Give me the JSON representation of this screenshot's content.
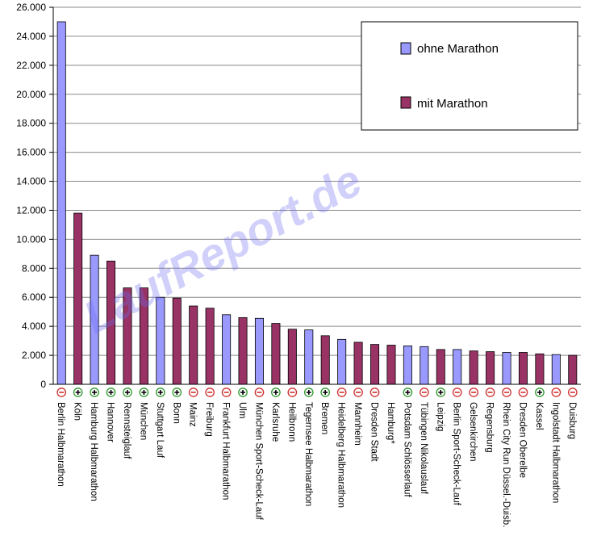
{
  "chart_data": {
    "type": "bar",
    "ylim": [
      0,
      26000
    ],
    "y_ticks": [
      "0",
      "2.000",
      "4.000",
      "6.000",
      "8.000",
      "10.000",
      "12.000",
      "14.000",
      "16.000",
      "18.000",
      "20.000",
      "22.000",
      "24.000",
      "26.000"
    ],
    "grid": true,
    "legend_position": "top-right",
    "series": [
      {
        "name": "ohne Marathon",
        "color": "#9999ff"
      },
      {
        "name": "mit Marathon",
        "color": "#993366"
      }
    ],
    "watermark": "LaufReport.de",
    "categories": [
      {
        "label": "Berlin Halbmarathon",
        "value": 25000,
        "series": 0,
        "marker": "minus"
      },
      {
        "label": "Köln",
        "value": 11800,
        "series": 1,
        "marker": "plus"
      },
      {
        "label": "Hamburg Halbmarathon",
        "value": 8900,
        "series": 0,
        "marker": "plus"
      },
      {
        "label": "Hannover",
        "value": 8500,
        "series": 1,
        "marker": "plus"
      },
      {
        "label": "Rennsteiglauf",
        "value": 6650,
        "series": 1,
        "marker": "plus"
      },
      {
        "label": "München",
        "value": 6650,
        "series": 1,
        "marker": "plus"
      },
      {
        "label": "Stuttgart Lauf",
        "value": 6000,
        "series": 0,
        "marker": "plus"
      },
      {
        "label": "Bonn",
        "value": 5950,
        "series": 1,
        "marker": "plus"
      },
      {
        "label": "Mainz",
        "value": 5400,
        "series": 1,
        "marker": "minus"
      },
      {
        "label": "Freiburg",
        "value": 5250,
        "series": 1,
        "marker": "minus"
      },
      {
        "label": "Frankfurt Halbmarathon",
        "value": 4800,
        "series": 0,
        "marker": "minus"
      },
      {
        "label": "Ulm",
        "value": 4600,
        "series": 1,
        "marker": "plus"
      },
      {
        "label": "München Sport-Scheck-Lauf",
        "value": 4550,
        "series": 0,
        "marker": "minus"
      },
      {
        "label": "Karlsruhe",
        "value": 4200,
        "series": 1,
        "marker": "plus"
      },
      {
        "label": "Heilbronn",
        "value": 3800,
        "series": 1,
        "marker": "minus"
      },
      {
        "label": "Tegernsee Halbmarathon",
        "value": 3750,
        "series": 0,
        "marker": "plus"
      },
      {
        "label": "Bremen",
        "value": 3350,
        "series": 1,
        "marker": "plus"
      },
      {
        "label": "Heidelberg Halbmarathon",
        "value": 3100,
        "series": 0,
        "marker": "minus"
      },
      {
        "label": "Mannheim",
        "value": 2900,
        "series": 1,
        "marker": "minus"
      },
      {
        "label": "Dresden Stadt",
        "value": 2750,
        "series": 1,
        "marker": "minus"
      },
      {
        "label": "Hamburg*",
        "value": 2700,
        "series": 1,
        "marker": "none"
      },
      {
        "label": "Potsdam Schlösserlauf",
        "value": 2650,
        "series": 0,
        "marker": "plus"
      },
      {
        "label": "Tübingen Nikolauslauf",
        "value": 2600,
        "series": 0,
        "marker": "minus"
      },
      {
        "label": "Leipzig",
        "value": 2400,
        "series": 1,
        "marker": "plus"
      },
      {
        "label": "Berlin Sport-Scheck-Lauf",
        "value": 2400,
        "series": 0,
        "marker": "minus"
      },
      {
        "label": "Gelsenkirchen",
        "value": 2300,
        "series": 1,
        "marker": "minus"
      },
      {
        "label": "Regensburg",
        "value": 2250,
        "series": 1,
        "marker": "minus"
      },
      {
        "label": "Rhein City Run Düssel.-Duisb.",
        "value": 2200,
        "series": 0,
        "marker": "minus"
      },
      {
        "label": "Dresden Oberelbe",
        "value": 2200,
        "series": 1,
        "marker": "minus"
      },
      {
        "label": "Kassel",
        "value": 2100,
        "series": 1,
        "marker": "plus"
      },
      {
        "label": "Ingolstadt Halbmarathon",
        "value": 2050,
        "series": 0,
        "marker": "minus"
      },
      {
        "label": "Duisburg",
        "value": 2000,
        "series": 1,
        "marker": "minus"
      }
    ]
  }
}
